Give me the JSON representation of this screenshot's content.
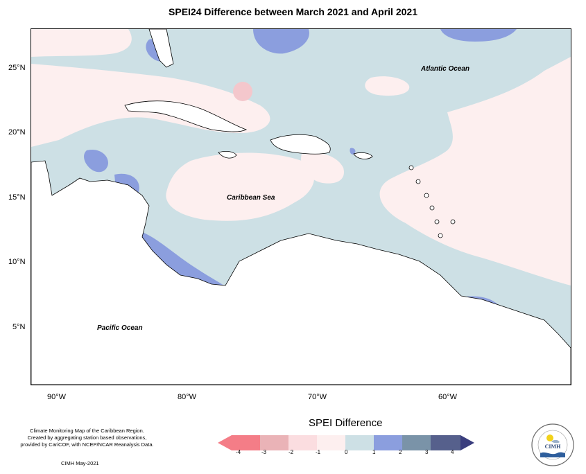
{
  "title": "SPEI24 Difference between March 2021 and April 2021",
  "lat_labels": [
    "25°N",
    "20°N",
    "15°N",
    "10°N",
    "5°N"
  ],
  "lon_labels": [
    "90°W",
    "80°W",
    "70°W",
    "60°W"
  ],
  "oceans": {
    "atlantic": "Atlantic Ocean",
    "caribbean": "Caribbean Sea",
    "pacific": "Pacific Ocean"
  },
  "credit_lines": [
    "Climate Monitoring Map of the Caribbean Region.",
    "Created by aggregating station based observations,",
    "provided by CariCOF, with NCEP/NCAR Reanalysis Data."
  ],
  "credit_date": "CIMH May-2021",
  "legend": {
    "title": "SPEI Difference",
    "ticks": [
      "-4",
      "-3",
      "-2",
      "-1",
      "0",
      "1",
      "2",
      "3",
      "4"
    ],
    "colors": [
      "#f47d87",
      "#eab3b7",
      "#fbdde0",
      "#fdefef",
      "#cde0e5",
      "#8b9ede",
      "#7a93a8",
      "#56608c",
      "#3a3e7e"
    ]
  },
  "colors": {
    "land": "#ffffff",
    "near_zero_positive": "#cde0e5",
    "near_zero_negative": "#fdefef",
    "wet": "#8b9ede",
    "dry": "#f4c7cc"
  },
  "logo": {
    "top_text": "Caribbean Institute for",
    "name": "CIMH",
    "bottom_text": "Meteorology and Hydrology"
  }
}
